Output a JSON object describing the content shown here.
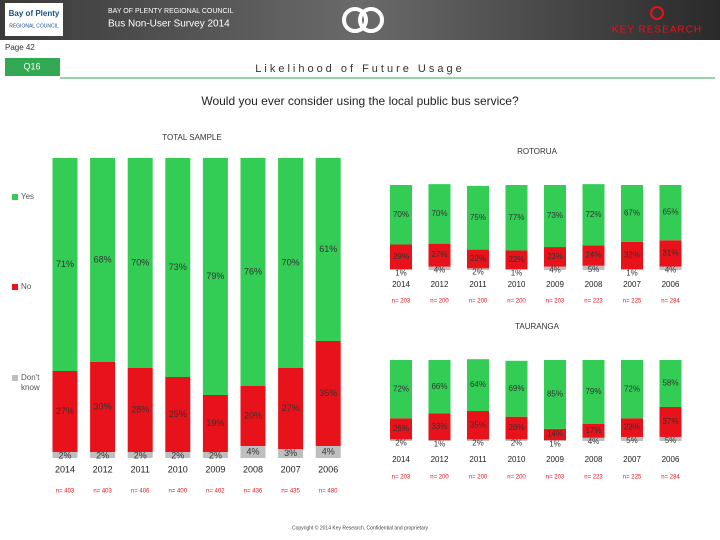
{
  "header": {
    "logo_left": "Bay of Plenty",
    "logo_left_sub": "REGIONAL COUNCIL",
    "org": "BAY OF PLENTY REGIONAL COUNCIL",
    "survey": "Bus Non-User Survey 2014",
    "logo_right": "KEY RESEARCH"
  },
  "page": "Page 42",
  "question": "Q16",
  "section_title": "Likelihood of Future Usage",
  "question_text": "Would you ever consider using the local public bus service?",
  "footer": "Copyright © 2014 Key Research. Confidential and proprietary",
  "chart_data": [
    {
      "type": "stacked-bar",
      "title": "TOTAL SAMPLE",
      "categories": [
        "2014",
        "2012",
        "2011",
        "2010",
        "2009",
        "2008",
        "2007",
        "2006"
      ],
      "n_labels": [
        "n= 403",
        "n= 403",
        "n= 406",
        "n= 400",
        "n= 402",
        "n= 436",
        "n= 435",
        "n= 480"
      ],
      "series": [
        {
          "name": "Don't know",
          "color": "#bfbfbf",
          "values": [
            2,
            2,
            2,
            2,
            2,
            4,
            3,
            4
          ],
          "value_labels": [
            "2%",
            "2%",
            "2%",
            "2%",
            "2%",
            "4%",
            "3%",
            "4%"
          ]
        },
        {
          "name": "No",
          "color": "#e8121a",
          "values": [
            27,
            30,
            28,
            25,
            19,
            20,
            27,
            35
          ],
          "value_labels": [
            "27%",
            "30%",
            "28%",
            "25%",
            "19%",
            "20%",
            "27%",
            "35%"
          ]
        },
        {
          "name": "Yes",
          "color": "#33cc55",
          "values": [
            71,
            68,
            70,
            73,
            79,
            76,
            70,
            61
          ],
          "value_labels": [
            "71%",
            "68%",
            "70%",
            "73%",
            "79%",
            "76%",
            "70%",
            "61%"
          ]
        }
      ]
    },
    {
      "type": "stacked-bar",
      "title": "ROTORUA",
      "categories": [
        "2014",
        "2012",
        "2011",
        "2010",
        "2009",
        "2008",
        "2007",
        "2006"
      ],
      "n_labels": [
        "n= 203",
        "n= 200",
        "n= 200",
        "n= 200",
        "n= 203",
        "n= 223",
        "n= 225",
        "n= 284"
      ],
      "series": [
        {
          "color": "#bfbfbf",
          "values": [
            1,
            4,
            2,
            1,
            4,
            5,
            1,
            4
          ],
          "value_labels": [
            "1%",
            "4%",
            "2%",
            "1%",
            "4%",
            "5%",
            "1%",
            "4%"
          ]
        },
        {
          "color": "#e8121a",
          "values": [
            29,
            27,
            22,
            22,
            23,
            24,
            32,
            31
          ],
          "value_labels": [
            "29%",
            "27%",
            "22%",
            "22%",
            "23%",
            "24%",
            "32%",
            "31%"
          ]
        },
        {
          "color": "#33cc55",
          "values": [
            70,
            70,
            75,
            77,
            73,
            72,
            67,
            65
          ],
          "value_labels": [
            "70%",
            "70%",
            "75%",
            "77%",
            "73%",
            "72%",
            "67%",
            "65%"
          ]
        }
      ]
    },
    {
      "type": "stacked-bar",
      "title": "TAURANGA",
      "categories": [
        "2014",
        "2012",
        "2011",
        "2010",
        "2009",
        "2008",
        "2007",
        "2006"
      ],
      "n_labels": [
        "n= 203",
        "n= 200",
        "n= 200",
        "n= 200",
        "n= 203",
        "n= 223",
        "n= 225",
        "n= 284"
      ],
      "series": [
        {
          "color": "#bfbfbf",
          "values": [
            2,
            1,
            2,
            2,
            1,
            4,
            5,
            5
          ],
          "value_labels": [
            "2%",
            "1%",
            "2%",
            "2%",
            "1%",
            "4%",
            "5%",
            "5%"
          ]
        },
        {
          "color": "#e8121a",
          "values": [
            26,
            33,
            35,
            28,
            14,
            17,
            23,
            37
          ],
          "value_labels": [
            "26%",
            "33%",
            "35%",
            "28%",
            "14%",
            "17%",
            "23%",
            "37%"
          ]
        },
        {
          "color": "#33cc55",
          "values": [
            72,
            66,
            64,
            69,
            85,
            79,
            72,
            58
          ],
          "value_labels": [
            "72%",
            "66%",
            "64%",
            "69%",
            "85%",
            "79%",
            "72%",
            "58%"
          ]
        }
      ]
    }
  ]
}
